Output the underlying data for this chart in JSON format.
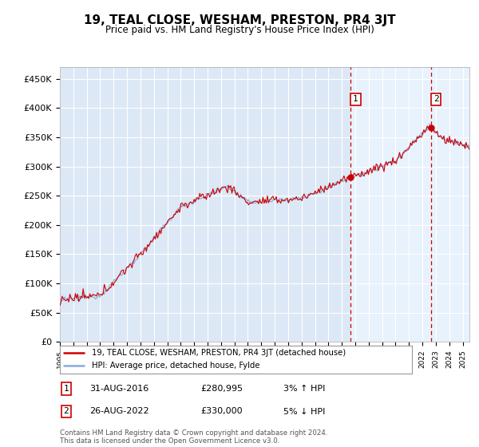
{
  "title": "19, TEAL CLOSE, WESHAM, PRESTON, PR4 3JT",
  "subtitle": "Price paid vs. HM Land Registry's House Price Index (HPI)",
  "ylabel_ticks": [
    "£0",
    "£50K",
    "£100K",
    "£150K",
    "£200K",
    "£250K",
    "£300K",
    "£350K",
    "£400K",
    "£450K"
  ],
  "ytick_values": [
    0,
    50000,
    100000,
    150000,
    200000,
    250000,
    300000,
    350000,
    400000,
    450000
  ],
  "ylim": [
    0,
    470000
  ],
  "xlim_start": 1995.0,
  "xlim_end": 2025.5,
  "x_tick_years": [
    1995,
    1996,
    1997,
    1998,
    1999,
    2000,
    2001,
    2002,
    2003,
    2004,
    2005,
    2006,
    2007,
    2008,
    2009,
    2010,
    2011,
    2012,
    2013,
    2014,
    2015,
    2016,
    2017,
    2018,
    2019,
    2020,
    2021,
    2022,
    2023,
    2024,
    2025
  ],
  "bg_color": "#dce8f5",
  "plot_bg_color": "#dce8f5",
  "grid_color": "#ffffff",
  "red_line_color": "#cc0000",
  "blue_line_color": "#88aadd",
  "marker1_x": 2016.67,
  "marker1_y": 280995,
  "marker2_x": 2022.67,
  "marker2_y": 330000,
  "marker1_label": "31-AUG-2016",
  "marker1_price": "£280,995",
  "marker1_hpi": "3% ↑ HPI",
  "marker2_label": "26-AUG-2022",
  "marker2_price": "£330,000",
  "marker2_hpi": "5% ↓ HPI",
  "legend_line1": "19, TEAL CLOSE, WESHAM, PRESTON, PR4 3JT (detached house)",
  "legend_line2": "HPI: Average price, detached house, Fylde",
  "footer": "Contains HM Land Registry data © Crown copyright and database right 2024.\nThis data is licensed under the Open Government Licence v3.0.",
  "right_bg_color": "#e8f2fc"
}
